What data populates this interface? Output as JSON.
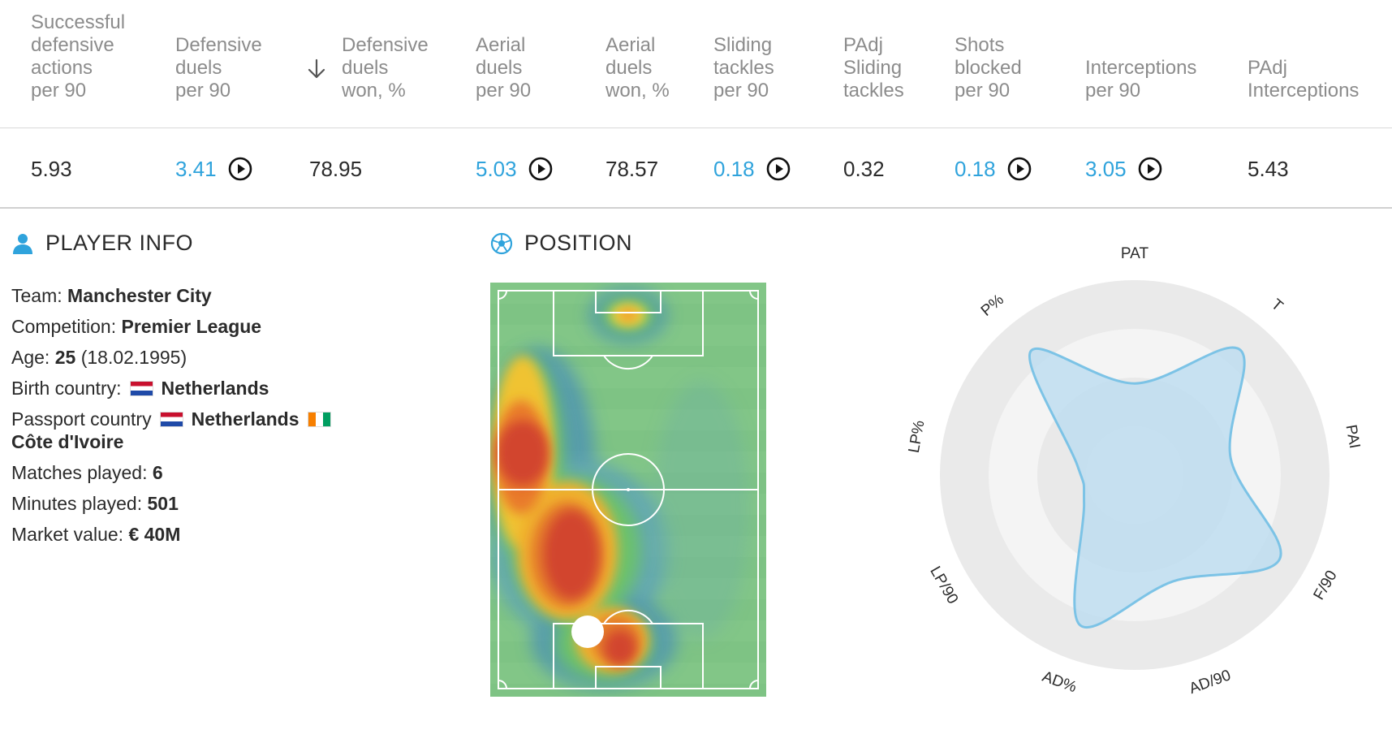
{
  "stats_table": {
    "columns": [
      {
        "lines": [
          "Successful",
          "defensive",
          "actions",
          "per 90"
        ]
      },
      {
        "lines": [
          "Defensive",
          "duels",
          "per 90"
        ]
      },
      {
        "lines": [
          "Defensive",
          "duels",
          "won, %"
        ]
      },
      {
        "lines": [
          "Aerial",
          "duels",
          "per 90"
        ]
      },
      {
        "lines": [
          "Aerial",
          "duels",
          "won, %"
        ]
      },
      {
        "lines": [
          "Sliding",
          "tackles",
          "per 90"
        ]
      },
      {
        "lines": [
          "PAdj",
          "Sliding",
          "tackles"
        ]
      },
      {
        "lines": [
          "Shots",
          "blocked",
          "per 90"
        ]
      },
      {
        "lines": [
          "Interceptions",
          "per 90"
        ]
      },
      {
        "lines": [
          "PAdj",
          "Interceptions"
        ]
      }
    ],
    "sorted_column_icon": "arrow-down-icon",
    "values": [
      "5.93",
      "3.41",
      "78.95",
      "5.03",
      "78.57",
      "0.18",
      "0.32",
      "0.18",
      "3.05",
      "5.43"
    ],
    "link_color": "#2fa3dc"
  },
  "player_info": {
    "title": "PLAYER INFO",
    "icon": "person-icon",
    "team_label": "Team:",
    "team": "Manchester City",
    "competition_label": "Competition:",
    "competition": "Premier League",
    "age_label": "Age:",
    "age": "25",
    "birth_date": "(18.02.1995)",
    "birth_country_label": "Birth country:",
    "birth_country": "Netherlands",
    "passport_label": "Passport country",
    "passport_country_1": "Netherlands",
    "passport_country_2": "Côte d'Ivoire",
    "matches_label": "Matches played:",
    "matches": "6",
    "minutes_label": "Minutes played:",
    "minutes": "501",
    "market_label": "Market value:",
    "market_value": "€ 40M"
  },
  "position": {
    "title": "POSITION",
    "icon": "soccer-ball-icon",
    "pitch_color": "#7ec384"
  },
  "radar": {
    "axes": [
      "PAT",
      "T",
      "PAI",
      "F/90",
      "AD/90",
      "AD%",
      "LP/90",
      "LP%",
      "P%"
    ],
    "values": [
      0.47,
      0.84,
      0.5,
      0.86,
      0.58,
      0.82,
      0.3,
      0.3,
      0.83
    ],
    "fill_color": "#bcdcf0",
    "stroke_color": "#7cc3e6"
  }
}
